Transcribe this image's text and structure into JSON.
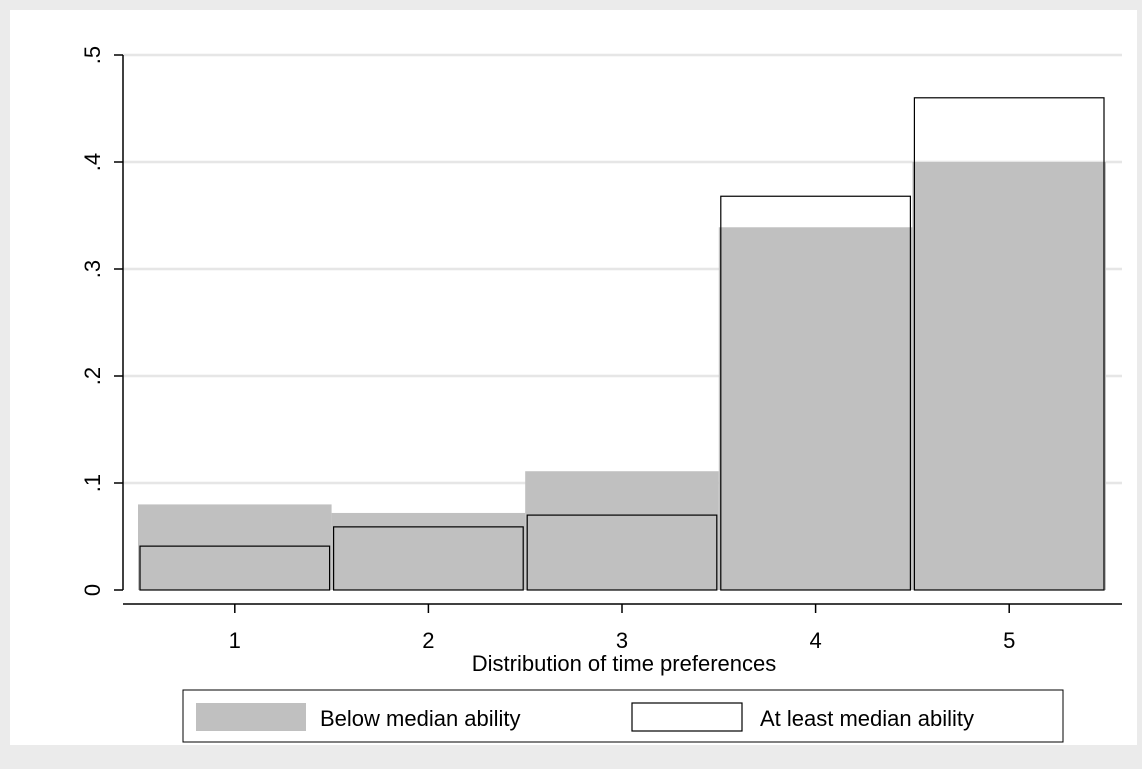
{
  "chart_data": {
    "type": "bar",
    "title": "",
    "xlabel": "Distribution of time preferences",
    "ylabel": "",
    "categories": [
      "1",
      "2",
      "3",
      "4",
      "5"
    ],
    "ylim": [
      0,
      0.5
    ],
    "yticks": [
      {
        "value": 0,
        "label": "0"
      },
      {
        "value": 0.1,
        "label": ".1"
      },
      {
        "value": 0.2,
        "label": ".2"
      },
      {
        "value": 0.3,
        "label": ".3"
      },
      {
        "value": 0.4,
        "label": ".4"
      },
      {
        "value": 0.5,
        "label": ".5"
      }
    ],
    "grid": true,
    "legend_position": "bottom",
    "series": [
      {
        "name": "Below median ability",
        "style": "filled",
        "color": "#c0c0c0",
        "values": [
          0.08,
          0.072,
          0.111,
          0.339,
          0.4
        ]
      },
      {
        "name": "At least median ability",
        "style": "outline",
        "color": "#ffffff",
        "values": [
          0.041,
          0.059,
          0.07,
          0.368,
          0.46
        ]
      }
    ]
  },
  "colors": {
    "outer_background": "#ebebeb",
    "plot_background": "#ffffff",
    "grid": "#e6e6e6",
    "bar_fill": "#c0c0c0",
    "outline": "#000000"
  }
}
